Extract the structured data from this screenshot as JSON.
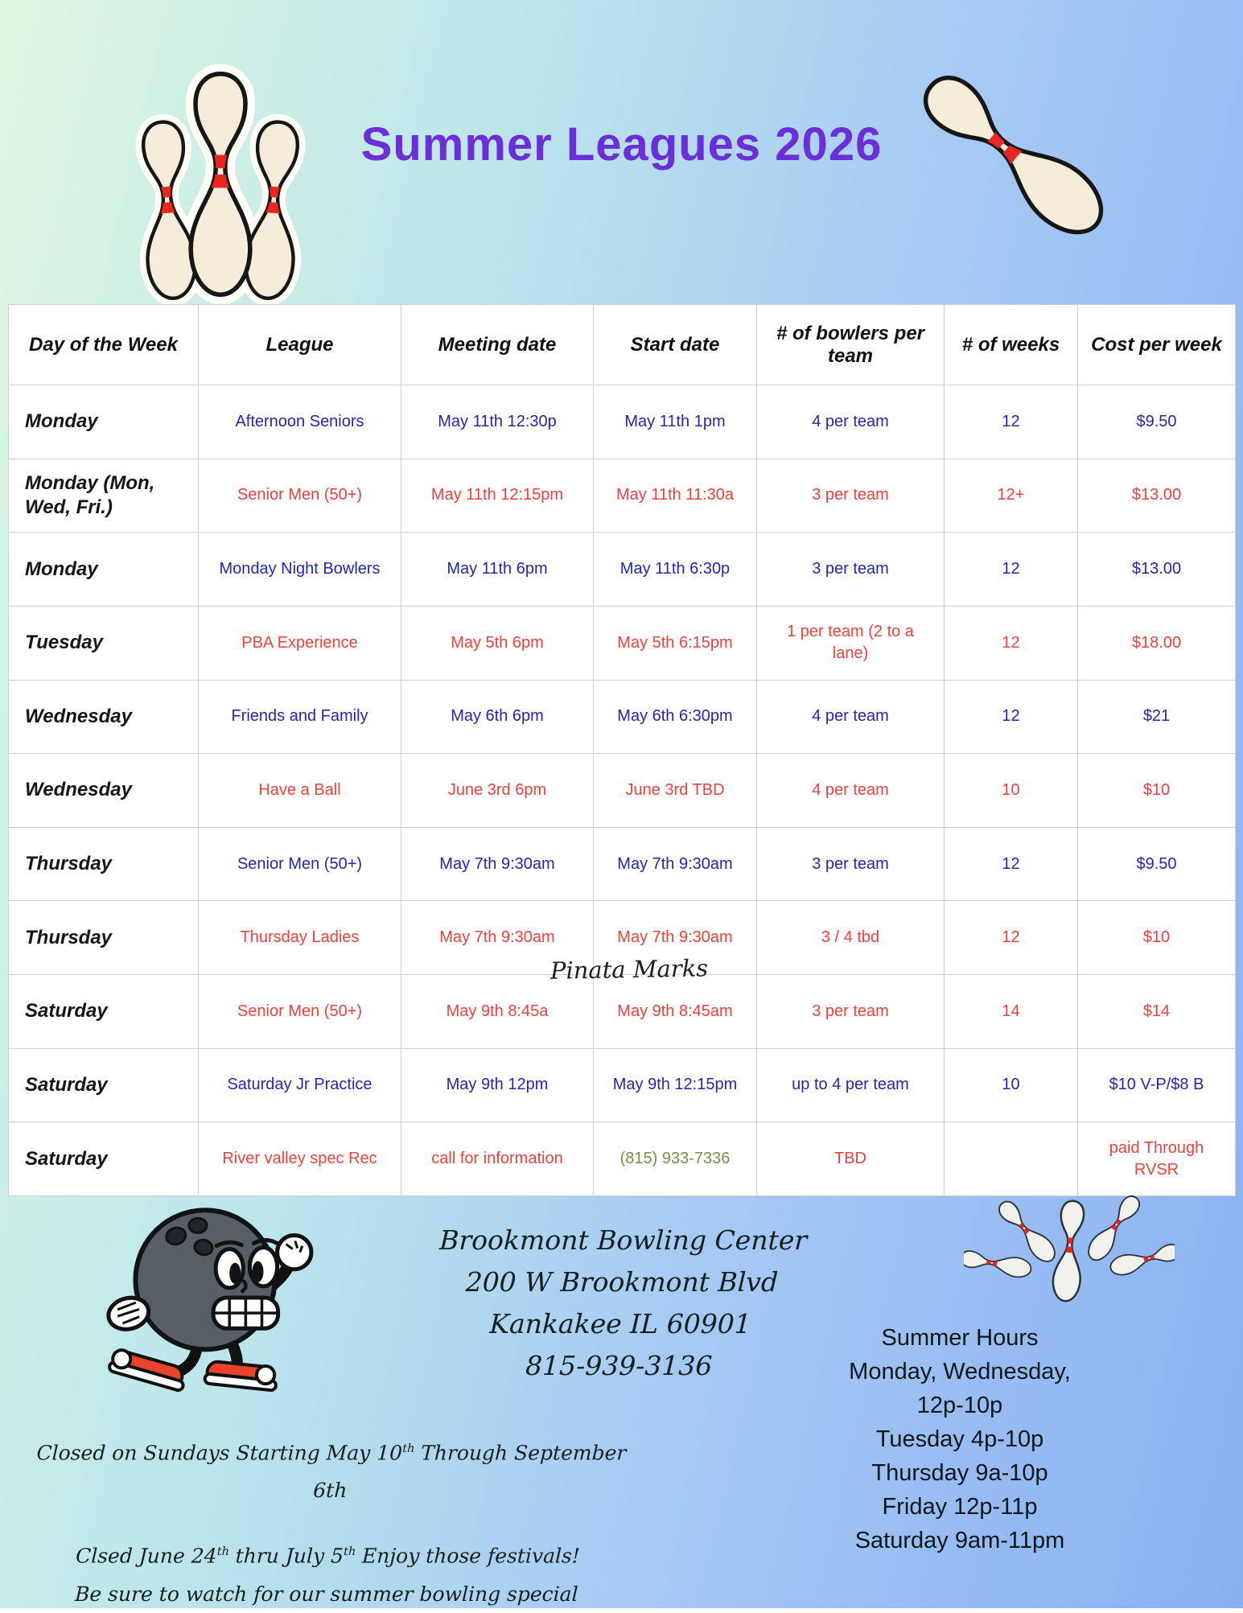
{
  "title": "Summer Leagues 2026",
  "colors": {
    "title_purple": "#6c2ed8",
    "row_blue": "#2525ad",
    "row_red": "#ee403d",
    "phone_green": "#6e9246",
    "pin_stripe_red": "#e82820"
  },
  "table": {
    "headers": [
      "Day of the Week",
      "League",
      "Meeting date",
      "Start date",
      "# of bowlers per team",
      "# of weeks",
      "Cost per week"
    ],
    "rows": [
      {
        "day": "Monday",
        "league": "Afternoon Seniors",
        "meeting": "May 11th 12:30p",
        "start": "May 11th 1pm",
        "bowlers": "4 per team",
        "weeks": "12",
        "cost": "$9.50",
        "color": "blue"
      },
      {
        "day": "Monday (Mon, Wed, Fri.)",
        "league": "Senior Men (50+)",
        "meeting": "May 11th 12:15pm",
        "start": "May 11th 11:30a",
        "bowlers": "3 per team",
        "weeks": "12+",
        "cost": "$13.00",
        "color": "red"
      },
      {
        "day": "Monday",
        "league": "Monday Night Bowlers",
        "meeting": "May 11th 6pm",
        "start": "May 11th 6:30p",
        "bowlers": "3 per team",
        "weeks": "12",
        "cost": "$13.00",
        "color": "blue"
      },
      {
        "day": "Tuesday",
        "league": "PBA Experience",
        "meeting": "May 5th 6pm",
        "start": "May 5th 6:15pm",
        "bowlers": "1 per team (2 to a lane)",
        "weeks": "12",
        "cost": "$18.00",
        "color": "red"
      },
      {
        "day": "Wednesday",
        "league": "Friends and Family",
        "meeting": "May 6th 6pm",
        "start": "May 6th 6:30pm",
        "bowlers": "4 per team",
        "weeks": "12",
        "cost": "$21",
        "color": "blue"
      },
      {
        "day": "Wednesday",
        "league": "Have a Ball",
        "meeting": "June 3rd 6pm",
        "start": "June 3rd TBD",
        "bowlers": "4 per team",
        "weeks": "10",
        "cost": "$10",
        "color": "red"
      },
      {
        "day": "Thursday",
        "league": "Senior Men (50+)",
        "meeting": "May 7th 9:30am",
        "start": "May 7th 9:30am",
        "bowlers": "3 per team",
        "weeks": "12",
        "cost": "$9.50",
        "color": "blue"
      },
      {
        "day": "Thursday",
        "league": "Thursday Ladies",
        "meeting": "May 7th 9:30am",
        "start": "May 7th 9:30am",
        "bowlers": "3 / 4 tbd",
        "weeks": "12",
        "cost": "$10",
        "color": "red"
      },
      {
        "day": "Saturday",
        "league": "Senior Men (50+)",
        "meeting": "May 9th 8:45a",
        "start": "May 9th 8:45am",
        "bowlers": "3 per team",
        "weeks": "14",
        "cost": "$14",
        "color": "red"
      },
      {
        "day": "Saturday",
        "league": "Saturday Jr Practice",
        "meeting": "May 9th 12pm",
        "start": "May 9th 12:15pm",
        "bowlers": "up to 4 per team",
        "weeks": "10",
        "cost": "$10 V-P/$8 B",
        "color": "blue"
      },
      {
        "day": "Saturday",
        "league": "River valley spec Rec",
        "meeting": "call for information",
        "start": "(815) 933-7336",
        "bowlers": "TBD",
        "weeks": "",
        "cost": "paid Through RVSR",
        "color": "red",
        "start_color": "green"
      }
    ]
  },
  "watermark": "Pinata Marks",
  "footer": {
    "address_lines": [
      "Brookmont Bowling Center",
      "200 W Brookmont Blvd",
      "Kankakee IL 60901",
      "815-939-3136"
    ],
    "hours_lines": [
      "Summer Hours",
      "Monday, Wednesday,",
      "12p-10p",
      "Tuesday 4p-10p",
      "Thursday 9a-10p",
      "Friday 12p-11p",
      "Saturday 9am-11pm"
    ],
    "closed_notes": [
      {
        "segments": [
          {
            "text": "Closed on Sundays Starting May 10"
          },
          {
            "sup": "th"
          },
          {
            "text": " Through September 6th"
          }
        ]
      },
      {
        "segments": [
          {
            "text": "Clsed June 24"
          },
          {
            "sup": "th"
          },
          {
            "text": " thru July 5"
          },
          {
            "sup": "th"
          },
          {
            "text": " Enjoy those festivals!"
          }
        ]
      },
      {
        "segments": [
          {
            "text": "Be sure to watch for our summer bowling special"
          }
        ]
      }
    ]
  },
  "graphics": {
    "top_left": "three-bowling-pins",
    "top_right": "tilted-bowling-pin",
    "bottom_left": "running-bowling-ball-mascot",
    "bottom_right": "scattered-bowling-pins"
  }
}
